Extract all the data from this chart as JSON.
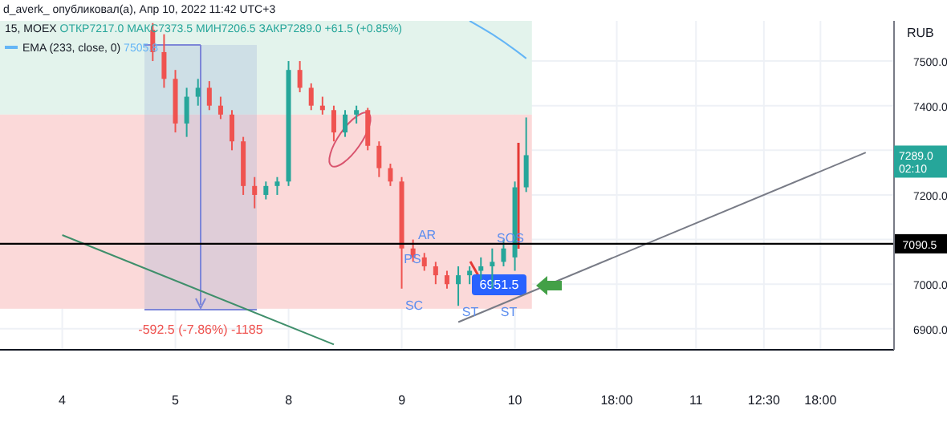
{
  "chart_data": {
    "type": "candlestick",
    "title": "15, MOEX",
    "subtitle": "ОТКР7217.0 МАКС7373.5 МИН7206.5 ЗАКР7289.0 +61.5 (+0.85%)",
    "categories": [
      "4",
      null,
      null,
      null,
      null,
      null,
      null,
      null,
      null,
      null,
      "5",
      null,
      null,
      null,
      null,
      null,
      null,
      null,
      null,
      null,
      "8",
      null,
      null,
      null,
      null,
      null,
      null,
      null,
      null,
      null,
      "9",
      null,
      null,
      null,
      null,
      null,
      null,
      null,
      null,
      null,
      "10",
      null,
      null,
      null,
      null,
      null,
      null,
      null,
      null,
      "18:00",
      null,
      null,
      null,
      null,
      null,
      null,
      "11",
      null,
      null,
      null,
      null,
      null,
      "12:30",
      null,
      null,
      null,
      null,
      "18:00",
      null,
      null,
      null,
      null,
      null,
      null
    ],
    "ohlc": [
      null,
      null,
      null,
      null,
      null,
      null,
      null,
      null,
      [
        7570,
        7585,
        7500,
        7520
      ],
      [
        7520,
        7560,
        7440,
        7460
      ],
      [
        7460,
        7480,
        7340,
        7360
      ],
      [
        7360,
        7440,
        7330,
        7420
      ],
      [
        7420,
        7460,
        7400,
        7440
      ],
      [
        7440,
        7455,
        7390,
        7400
      ],
      [
        7400,
        7420,
        7370,
        7380
      ],
      [
        7380,
        7390,
        7300,
        7320
      ],
      [
        7320,
        7330,
        7200,
        7220
      ],
      [
        7220,
        7240,
        7170,
        7200
      ],
      [
        7200,
        7230,
        7190,
        7220
      ],
      [
        7220,
        7240,
        7200,
        7230
      ],
      [
        7230,
        7500,
        7220,
        7480
      ],
      [
        7480,
        7500,
        7430,
        7440
      ],
      [
        7440,
        7450,
        7390,
        7400
      ],
      [
        7400,
        7420,
        7380,
        7390
      ],
      [
        7390,
        7400,
        7320,
        7340
      ],
      [
        7340,
        7390,
        7330,
        7380
      ],
      [
        7380,
        7400,
        7360,
        7390
      ],
      [
        7390,
        7395,
        7300,
        7310
      ],
      [
        7310,
        7320,
        7240,
        7260
      ],
      [
        7260,
        7270,
        7220,
        7230
      ],
      [
        7230,
        7240,
        6990,
        7080
      ],
      [
        7080,
        7100,
        7050,
        7060
      ],
      [
        7060,
        7070,
        7030,
        7040
      ],
      [
        7040,
        7050,
        7000,
        7020
      ],
      [
        7020,
        7030,
        6990,
        7000
      ],
      [
        7000,
        7040,
        6951.5,
        7020
      ],
      [
        7020,
        7040,
        7000,
        7030
      ],
      [
        7030,
        7060,
        7010,
        7040
      ],
      [
        7040,
        7080,
        6990,
        7050
      ],
      [
        7050,
        7100,
        7040,
        7080
      ],
      [
        7060,
        7230,
        7030,
        7217
      ],
      [
        7217,
        7373.5,
        7206.5,
        7289
      ],
      null,
      null,
      null,
      null,
      null,
      null,
      null,
      null,
      null,
      null,
      null,
      null,
      null,
      null,
      null,
      null,
      null,
      null,
      null,
      null,
      null,
      null,
      null,
      null,
      null,
      null,
      null,
      null,
      null,
      null,
      null,
      null
    ],
    "colors": [
      null,
      null,
      null,
      null,
      null,
      null,
      null,
      null,
      "#ef5350",
      "#ef5350",
      "#ef5350",
      "#26a69a",
      "#26a69a",
      "#ef5350",
      "#ef5350",
      "#ef5350",
      "#ef5350",
      "#ef5350",
      "#26a69a",
      "#26a69a",
      "#26a69a",
      "#ef5350",
      "#ef5350",
      "#ef5350",
      "#ef5350",
      "#26a69a",
      "#26a69a",
      "#ef5350",
      "#ef5350",
      "#ef5350",
      "#ef5350",
      "#ef5350",
      "#ef5350",
      "#ef5350",
      "#ef5350",
      "#26a69a",
      "#26a69a",
      "#26a69a",
      "#26a69a",
      "#26a69a",
      "#26a69a",
      "#26a69a",
      null,
      null,
      null,
      null,
      null,
      null,
      null,
      null,
      null,
      null,
      null,
      null,
      null,
      null,
      null,
      null,
      null,
      null,
      null,
      null,
      null,
      null,
      null,
      null,
      null,
      null,
      null,
      null,
      null,
      null,
      null,
      null
    ],
    "series": [
      {
        "name": "EMA (233, close, 0)",
        "type": "line",
        "color": "#64b5f6",
        "values": [
          null,
          null,
          null,
          null,
          null,
          null,
          null,
          null,
          null,
          null,
          null,
          null,
          null,
          null,
          null,
          null,
          null,
          null,
          null,
          null,
          null,
          null,
          null,
          null,
          null,
          null,
          null,
          null,
          null,
          null,
          null,
          null,
          null,
          null,
          null,
          null,
          7590,
          null,
          7560,
          null,
          7525,
          7505.8,
          null,
          null,
          null,
          null,
          null,
          null,
          null,
          null,
          null,
          null,
          null,
          null,
          null,
          null,
          null,
          null,
          null,
          null,
          null,
          null,
          null,
          null,
          null,
          null,
          null,
          null,
          null,
          null,
          null,
          null,
          null,
          null
        ]
      },
      {
        "type": "line",
        "color": "#787b86",
        "values": [
          null,
          null,
          null,
          null,
          null,
          null,
          null,
          null,
          null,
          null,
          null,
          null,
          null,
          null,
          null,
          null,
          null,
          null,
          null,
          null,
          null,
          null,
          null,
          null,
          null,
          null,
          null,
          null,
          null,
          null,
          null,
          null,
          null,
          null,
          null,
          6915,
          null,
          null,
          null,
          null,
          null,
          null,
          null,
          null,
          null,
          null,
          null,
          null,
          null,
          null,
          null,
          null,
          null,
          null,
          null,
          null,
          null,
          null,
          null,
          null,
          null,
          null,
          null,
          null,
          null,
          null,
          null,
          null,
          null,
          null,
          null,
          7295,
          null,
          null
        ]
      },
      {
        "type": "line",
        "color": "#3f8f6b",
        "values": [
          7110,
          null,
          null,
          null,
          null,
          null,
          null,
          null,
          null,
          null,
          null,
          null,
          null,
          null,
          null,
          null,
          null,
          null,
          null,
          null,
          null,
          null,
          null,
          null,
          6865,
          null,
          null,
          null,
          null,
          null,
          null,
          null,
          null,
          null,
          null,
          null,
          null,
          null,
          null,
          null,
          null,
          null,
          null,
          null,
          null,
          null,
          null,
          null,
          null,
          null,
          null,
          null,
          null,
          null,
          null,
          null,
          null,
          null,
          null,
          null,
          null,
          null,
          null,
          null,
          null,
          null,
          null,
          null,
          null,
          null,
          null,
          null,
          null,
          null
        ]
      }
    ],
    "ylim": [
      6853,
      7590
    ],
    "yticks": [
      {
        "value": 6900,
        "label": "6900.0"
      },
      {
        "value": 7000,
        "label": "7000.0"
      },
      {
        "value": 7100,
        "label": null
      },
      {
        "value": 7200,
        "label": "7200.0"
      },
      {
        "value": 7300,
        "label": null
      },
      {
        "value": 7400,
        "label": "7400.0"
      },
      {
        "value": 7500,
        "label": "7500.0"
      }
    ],
    "ref_lines": [
      {
        "axis": "y",
        "value": 7090.5,
        "label": "7090.5",
        "color": "#000000"
      }
    ],
    "bands": [
      {
        "axis": "y",
        "from": 7380,
        "to": 7590,
        "color": "#e3f3ec"
      },
      {
        "axis": "y",
        "from": 6945,
        "to": 7380,
        "color": "#fbd9d9"
      }
    ],
    "annotations": [
      "d_averk_ опубликовал(а), Апр 10, 2022 11:42 UTC+3",
      "-592.5 (-7.86%) -1185",
      "AR",
      "PS",
      "SC",
      "ST",
      "ST",
      "SOS",
      "6951.5",
      "RUB",
      "02:10",
      "7289.0",
      "7505.8"
    ],
    "grid": true,
    "legend": "top left"
  }
}
